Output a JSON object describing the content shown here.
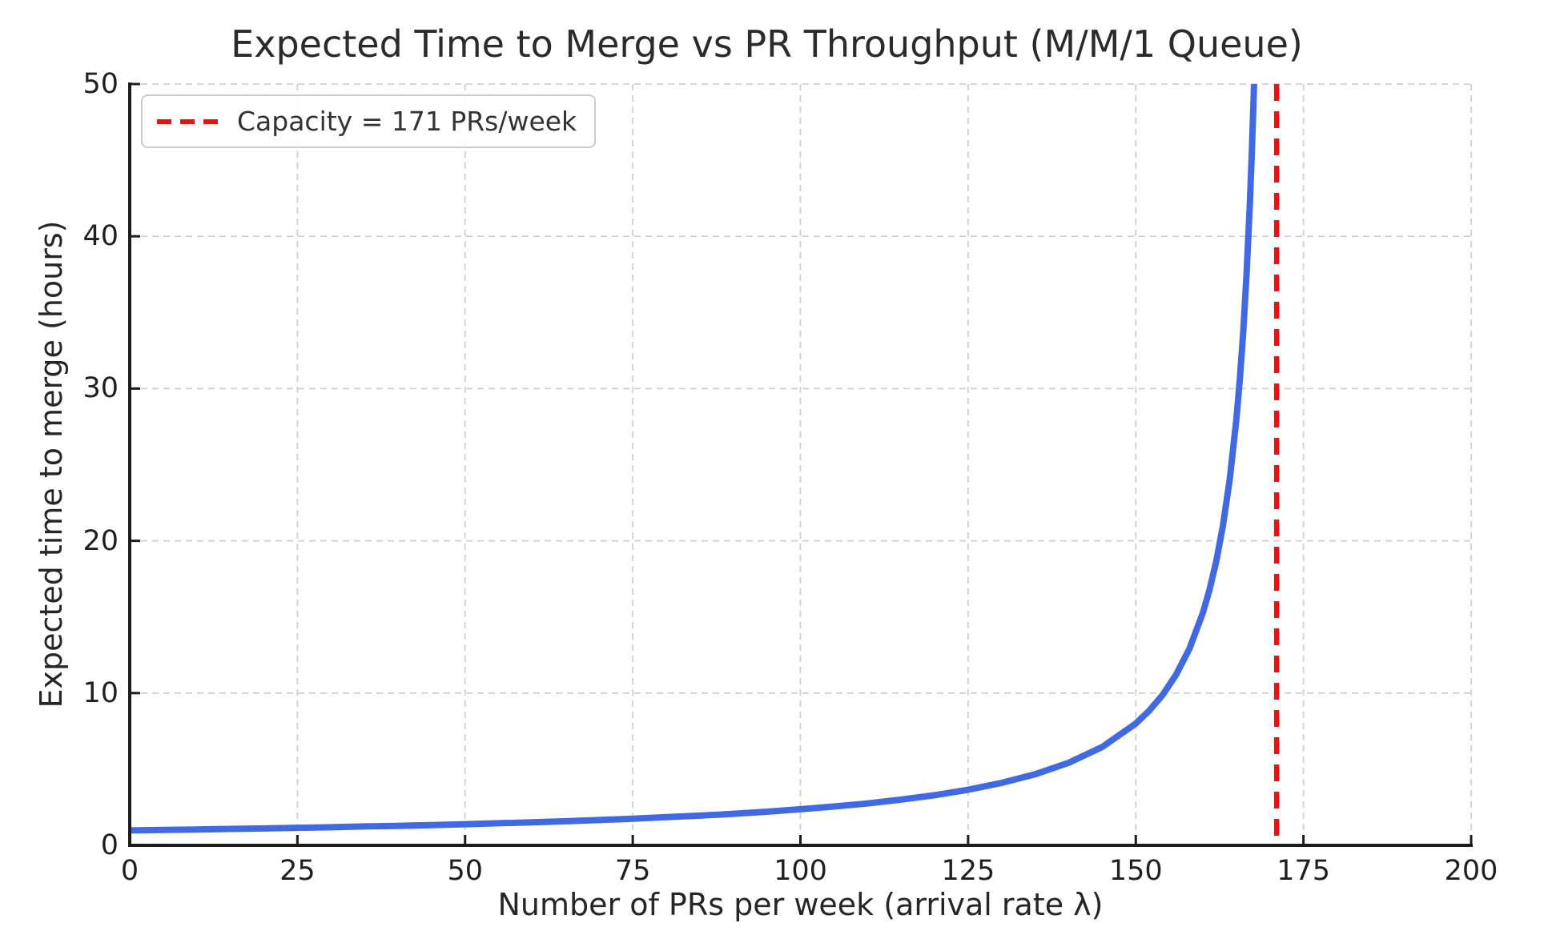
{
  "chart_data": {
    "type": "line",
    "title": "Expected Time to Merge vs PR Throughput (M/M/1 Queue)",
    "xlabel": "Number of PRs per week (arrival rate λ)",
    "ylabel": "Expected time to merge (hours)",
    "xlim": [
      0,
      200
    ],
    "ylim": [
      0,
      50
    ],
    "x_ticks": [
      0,
      25,
      50,
      75,
      100,
      125,
      150,
      175,
      200
    ],
    "y_ticks": [
      0,
      10,
      20,
      30,
      40,
      50
    ],
    "grid": true,
    "grid_style": "dashed",
    "grid_color": "#cfcfd4",
    "legend": {
      "position": "upper left",
      "entries": [
        {
          "label": "Capacity = 171 PRs/week",
          "color": "#ee1111",
          "style": "dashed"
        }
      ]
    },
    "vline": {
      "x": 171,
      "color": "#ee1111",
      "style": "dashed"
    },
    "series": [
      {
        "name": "expected-time-to-merge",
        "color": "#4169e1",
        "x": [
          0,
          5,
          10,
          15,
          20,
          25,
          30,
          35,
          40,
          45,
          50,
          55,
          60,
          65,
          70,
          75,
          80,
          85,
          90,
          95,
          100,
          105,
          110,
          115,
          120,
          125,
          130,
          135,
          140,
          145,
          150,
          152,
          154,
          156,
          158,
          160,
          161,
          162,
          163,
          164,
          165,
          165.5,
          166,
          166.5,
          167,
          167.3,
          167.6,
          167.8,
          168
        ],
        "y": [
          0.98,
          1.01,
          1.04,
          1.08,
          1.11,
          1.15,
          1.19,
          1.24,
          1.28,
          1.33,
          1.39,
          1.45,
          1.51,
          1.58,
          1.66,
          1.75,
          1.85,
          1.95,
          2.07,
          2.21,
          2.37,
          2.55,
          2.75,
          3.0,
          3.29,
          3.65,
          4.1,
          4.67,
          5.42,
          6.46,
          8.0,
          8.84,
          9.88,
          11.2,
          12.92,
          15.27,
          16.8,
          18.67,
          21.0,
          24.0,
          28.0,
          30.55,
          33.6,
          37.33,
          42.0,
          45.41,
          49.41,
          52.5,
          56.0
        ]
      }
    ]
  },
  "style": {
    "background": "#ffffff",
    "text_color": "#262626",
    "spine_color": "#1c1c1c",
    "curve_width": 8,
    "vline_width": 6.5
  }
}
